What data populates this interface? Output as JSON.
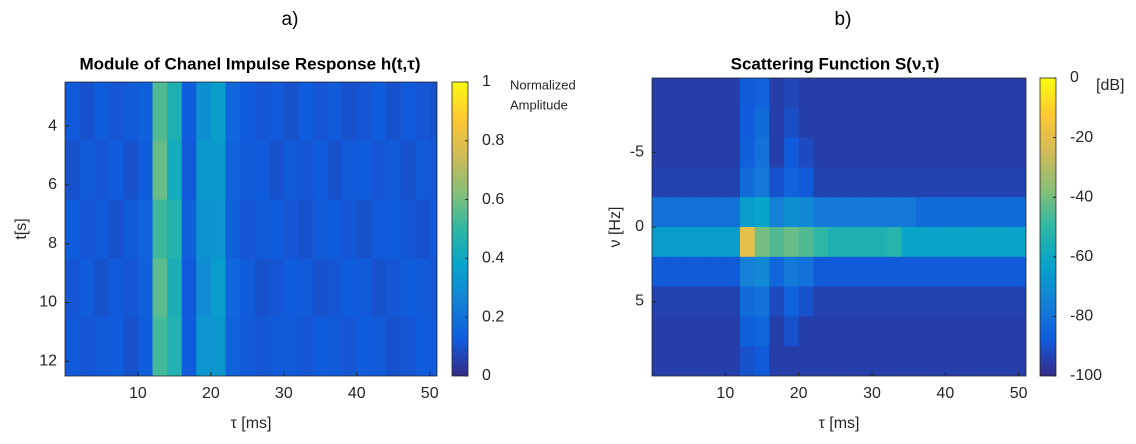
{
  "chart_data": [
    {
      "type": "heatmap",
      "panel_label": "a)",
      "title": "Module of Chanel Impulse Response h(t,τ)",
      "x_label": "τ [ms]",
      "y_label": "t[s]",
      "x": [
        1,
        3,
        5,
        7,
        9,
        11,
        13,
        15,
        17,
        19,
        21,
        23,
        25,
        27,
        29,
        31,
        33,
        35,
        37,
        39,
        41,
        43,
        45,
        47,
        49,
        51
      ],
      "y": [
        3.5,
        5.5,
        7.5,
        9.5,
        11.5
      ],
      "z": [
        [
          0.12,
          0.1,
          0.13,
          0.11,
          0.12,
          0.14,
          0.55,
          0.45,
          0.13,
          0.3,
          0.36,
          0.16,
          0.13,
          0.11,
          0.12,
          0.1,
          0.13,
          0.11,
          0.12,
          0.1,
          0.11,
          0.13,
          0.1,
          0.12,
          0.11,
          0.1
        ],
        [
          0.1,
          0.12,
          0.11,
          0.13,
          0.1,
          0.13,
          0.58,
          0.42,
          0.12,
          0.33,
          0.34,
          0.15,
          0.12,
          0.13,
          0.1,
          0.12,
          0.11,
          0.13,
          0.1,
          0.12,
          0.13,
          0.11,
          0.12,
          0.1,
          0.12,
          0.11
        ],
        [
          0.13,
          0.11,
          0.12,
          0.1,
          0.12,
          0.15,
          0.52,
          0.47,
          0.14,
          0.31,
          0.32,
          0.14,
          0.11,
          0.12,
          0.13,
          0.11,
          0.1,
          0.12,
          0.13,
          0.11,
          0.1,
          0.12,
          0.13,
          0.11,
          0.1,
          0.12
        ],
        [
          0.11,
          0.13,
          0.1,
          0.12,
          0.11,
          0.14,
          0.56,
          0.44,
          0.12,
          0.29,
          0.35,
          0.16,
          0.13,
          0.1,
          0.11,
          0.13,
          0.12,
          0.1,
          0.11,
          0.13,
          0.12,
          0.1,
          0.11,
          0.13,
          0.12,
          0.11
        ],
        [
          0.12,
          0.11,
          0.12,
          0.13,
          0.1,
          0.13,
          0.53,
          0.46,
          0.13,
          0.32,
          0.33,
          0.15,
          0.12,
          0.11,
          0.12,
          0.12,
          0.11,
          0.13,
          0.12,
          0.11,
          0.13,
          0.12,
          0.1,
          0.11,
          0.13,
          0.12
        ]
      ],
      "xlim": [
        0,
        51
      ],
      "ylim": [
        2.5,
        12.5
      ],
      "y_reversed": true,
      "xticks": [
        10,
        20,
        30,
        40,
        50
      ],
      "yticks": [
        4,
        6,
        8,
        10,
        12
      ],
      "colorbar": {
        "colormap": "parula",
        "lim": [
          0,
          1
        ],
        "ticks": [
          0,
          0.2,
          0.4,
          0.6,
          0.8,
          1
        ],
        "label": [
          "Normalized",
          "Amplitude"
        ]
      }
    },
    {
      "type": "heatmap",
      "panel_label": "b)",
      "title": "Scattering Function S(ν,τ)",
      "x_label": "τ [ms]",
      "y_label": "ν [Hz]",
      "x": [
        1,
        3,
        5,
        7,
        9,
        11,
        13,
        15,
        17,
        19,
        21,
        23,
        25,
        27,
        29,
        31,
        33,
        35,
        37,
        39,
        41,
        43,
        45,
        47,
        49,
        51
      ],
      "y": [
        -9,
        -7,
        -5,
        -3,
        -1,
        1,
        3,
        5,
        7,
        9
      ],
      "z": [
        [
          -95,
          -95,
          -95,
          -95,
          -95,
          -95,
          -88,
          -85,
          -95,
          -93,
          -95,
          -95,
          -95,
          -95,
          -95,
          -95,
          -95,
          -95,
          -95,
          -95,
          -95,
          -95,
          -95,
          -95,
          -95,
          -95
        ],
        [
          -95,
          -95,
          -95,
          -95,
          -95,
          -95,
          -87,
          -82,
          -95,
          -91,
          -95,
          -95,
          -95,
          -95,
          -95,
          -95,
          -95,
          -95,
          -95,
          -95,
          -95,
          -95,
          -95,
          -95,
          -95,
          -95
        ],
        [
          -95,
          -95,
          -95,
          -95,
          -95,
          -95,
          -86,
          -80,
          -95,
          -88,
          -92,
          -95,
          -95,
          -95,
          -95,
          -95,
          -95,
          -95,
          -95,
          -95,
          -95,
          -95,
          -95,
          -95,
          -95,
          -95
        ],
        [
          -94,
          -94,
          -94,
          -94,
          -94,
          -94,
          -82,
          -78,
          -90,
          -85,
          -88,
          -94,
          -94,
          -94,
          -94,
          -94,
          -94,
          -94,
          -94,
          -94,
          -94,
          -94,
          -94,
          -94,
          -94,
          -94
        ],
        [
          -80,
          -80,
          -80,
          -80,
          -80,
          -80,
          -65,
          -62,
          -75,
          -70,
          -72,
          -78,
          -78,
          -78,
          -78,
          -78,
          -78,
          -78,
          -82,
          -82,
          -82,
          -82,
          -82,
          -82,
          -82,
          -82
        ],
        [
          -65,
          -65,
          -65,
          -65,
          -65,
          -65,
          -20,
          -40,
          -45,
          -42,
          -45,
          -50,
          -55,
          -55,
          -55,
          -55,
          -52,
          -62,
          -62,
          -62,
          -62,
          -62,
          -62,
          -62,
          -62,
          -62
        ],
        [
          -88,
          -88,
          -88,
          -88,
          -88,
          -88,
          -75,
          -72,
          -84,
          -78,
          -80,
          -88,
          -88,
          -88,
          -88,
          -88,
          -88,
          -88,
          -88,
          -88,
          -88,
          -88,
          -88,
          -88,
          -88,
          -88
        ],
        [
          -94,
          -94,
          -94,
          -94,
          -94,
          -94,
          -82,
          -80,
          -92,
          -85,
          -90,
          -94,
          -94,
          -94,
          -94,
          -94,
          -94,
          -94,
          -94,
          -94,
          -94,
          -94,
          -94,
          -94,
          -94,
          -94
        ],
        [
          -95,
          -95,
          -95,
          -95,
          -95,
          -95,
          -86,
          -84,
          -95,
          -90,
          -95,
          -95,
          -95,
          -95,
          -95,
          -95,
          -95,
          -95,
          -95,
          -95,
          -95,
          -95,
          -95,
          -95,
          -95,
          -95
        ],
        [
          -95,
          -95,
          -95,
          -95,
          -95,
          -95,
          -90,
          -88,
          -95,
          -95,
          -95,
          -95,
          -95,
          -95,
          -95,
          -95,
          -95,
          -95,
          -95,
          -95,
          -95,
          -95,
          -95,
          -95,
          -95,
          -95
        ]
      ],
      "xlim": [
        0,
        51
      ],
      "ylim": [
        -10,
        10
      ],
      "y_reversed": true,
      "xticks": [
        10,
        20,
        30,
        40,
        50
      ],
      "yticks": [
        -5,
        0,
        5
      ],
      "colorbar": {
        "colormap": "parula",
        "lim": [
          -100,
          0
        ],
        "ticks": [
          -100,
          -80,
          -60,
          -40,
          -20,
          0
        ],
        "label": [
          "[dB]"
        ]
      }
    }
  ]
}
